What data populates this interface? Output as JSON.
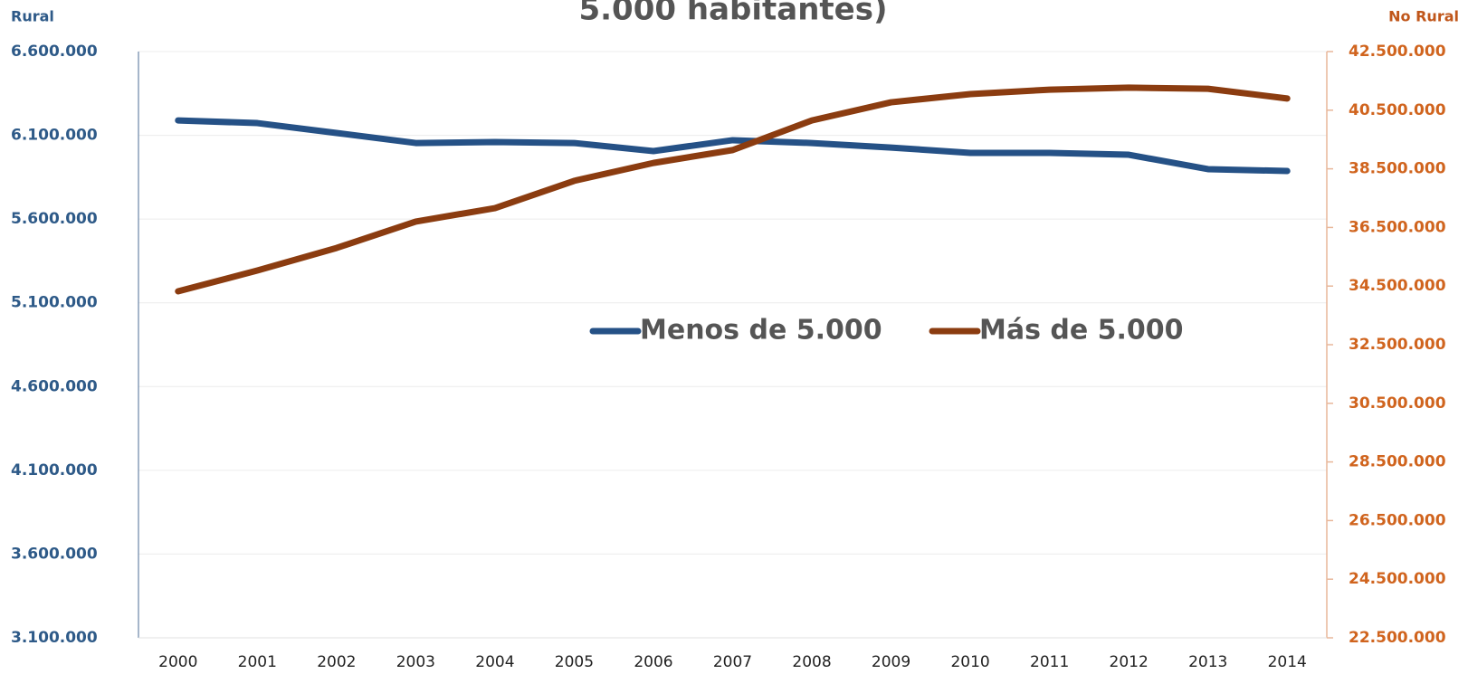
{
  "chart_data": {
    "type": "line",
    "title": "5.000 habitantes)",
    "y_label": "Rural",
    "y2_label": "No Rural",
    "categories": [
      "2000",
      "2001",
      "2002",
      "2003",
      "2004",
      "2005",
      "2006",
      "2007",
      "2008",
      "2009",
      "2010",
      "2011",
      "2012",
      "2013",
      "2014"
    ],
    "series": [
      {
        "name": "Menos de 5.000",
        "color": "#255186",
        "axis": "y",
        "values": [
          6189000,
          6173000,
          6114000,
          6054000,
          6060000,
          6054000,
          6006000,
          6071000,
          6054000,
          6027000,
          5995000,
          5995000,
          5984000,
          5898000,
          5887000
        ]
      },
      {
        "name": "Más de 5.000",
        "color": "#8b3c10",
        "axis": "y2",
        "values": [
          34320000,
          35030000,
          35800000,
          36700000,
          37160000,
          38090000,
          38700000,
          39140000,
          40150000,
          40770000,
          41050000,
          41200000,
          41270000,
          41230000,
          40900000
        ]
      }
    ],
    "ylim": [
      3100000,
      6600000
    ],
    "yticks": [
      {
        "value": 3100000,
        "label": "3.100.000"
      },
      {
        "value": 3600000,
        "label": "3.600.000"
      },
      {
        "value": 4100000,
        "label": "4.100.000"
      },
      {
        "value": 4600000,
        "label": "4.600.000"
      },
      {
        "value": 5100000,
        "label": "5.100.000"
      },
      {
        "value": 5600000,
        "label": "5.600.000"
      },
      {
        "value": 6100000,
        "label": "6.100.000"
      },
      {
        "value": 6600000,
        "label": "6.600.000"
      }
    ],
    "y2lim": [
      22500000,
      42500000
    ],
    "y2ticks": [
      {
        "value": 22500000,
        "label": "22.500.000"
      },
      {
        "value": 24500000,
        "label": "24.500.000"
      },
      {
        "value": 26500000,
        "label": "26.500.000"
      },
      {
        "value": 28500000,
        "label": "28.500.000"
      },
      {
        "value": 30500000,
        "label": "30.500.000"
      },
      {
        "value": 32500000,
        "label": "32.500.000"
      },
      {
        "value": 34500000,
        "label": "34.500.000"
      },
      {
        "value": 36500000,
        "label": "36.500.000"
      },
      {
        "value": 38500000,
        "label": "38.500.000"
      },
      {
        "value": 40500000,
        "label": "40.500.000"
      },
      {
        "value": 42500000,
        "label": "42.500.000"
      }
    ],
    "grid": true,
    "y_color": "#2e5a88",
    "y2_color": "#d0641e"
  }
}
